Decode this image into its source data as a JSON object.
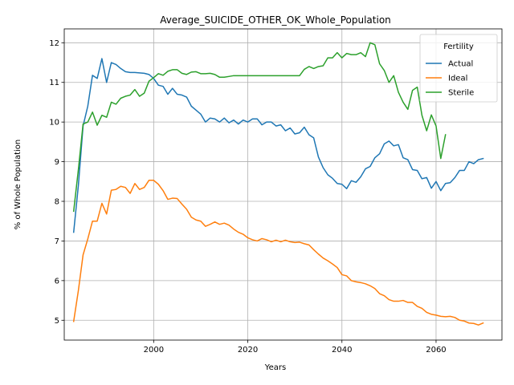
{
  "chart_data": {
    "type": "line",
    "title": "Average_SUICIDE_OTHER_OK_Whole_Population",
    "xlabel": "Years",
    "ylabel": "% of Whole Population",
    "xlim": [
      1981,
      2074
    ],
    "ylim": [
      4.5,
      12.35
    ],
    "xticks": [
      1980,
      2000,
      2020,
      2040,
      2060
    ],
    "yticks": [
      5,
      6,
      7,
      8,
      9,
      10,
      11,
      12
    ],
    "grid": true,
    "legend": {
      "title": "Fertility",
      "placement": "top-right"
    },
    "series": [
      {
        "name": "Actual",
        "color": "#1f77b4",
        "points": [
          [
            1983,
            7.22
          ],
          [
            1984,
            8.4
          ],
          [
            1985,
            9.9
          ],
          [
            1986,
            10.4
          ],
          [
            1987,
            11.18
          ],
          [
            1988,
            11.1
          ],
          [
            1989,
            11.6
          ],
          [
            1990,
            11.0
          ],
          [
            1991,
            11.5
          ],
          [
            1992,
            11.45
          ],
          [
            1993,
            11.35
          ],
          [
            1994,
            11.27
          ],
          [
            1995,
            11.25
          ],
          [
            1996,
            11.25
          ],
          [
            1997,
            11.24
          ],
          [
            1998,
            11.23
          ],
          [
            1999,
            11.2
          ],
          [
            2000,
            11.1
          ],
          [
            2001,
            10.93
          ],
          [
            2002,
            10.9
          ],
          [
            2003,
            10.7
          ],
          [
            2004,
            10.85
          ],
          [
            2005,
            10.7
          ],
          [
            2006,
            10.68
          ],
          [
            2007,
            10.63
          ],
          [
            2008,
            10.4
          ],
          [
            2009,
            10.3
          ],
          [
            2010,
            10.2
          ],
          [
            2011,
            10.0
          ],
          [
            2012,
            10.1
          ],
          [
            2013,
            10.08
          ],
          [
            2014,
            10.0
          ],
          [
            2015,
            10.1
          ],
          [
            2016,
            9.98
          ],
          [
            2017,
            10.05
          ],
          [
            2018,
            9.95
          ],
          [
            2019,
            10.05
          ],
          [
            2020,
            10.0
          ],
          [
            2021,
            10.08
          ],
          [
            2022,
            10.08
          ],
          [
            2023,
            9.93
          ],
          [
            2024,
            10.0
          ],
          [
            2025,
            10.0
          ],
          [
            2026,
            9.9
          ],
          [
            2027,
            9.93
          ],
          [
            2028,
            9.78
          ],
          [
            2029,
            9.85
          ],
          [
            2030,
            9.7
          ],
          [
            2031,
            9.73
          ],
          [
            2032,
            9.87
          ],
          [
            2033,
            9.68
          ],
          [
            2034,
            9.6
          ],
          [
            2035,
            9.12
          ],
          [
            2036,
            8.85
          ],
          [
            2037,
            8.67
          ],
          [
            2038,
            8.58
          ],
          [
            2039,
            8.45
          ],
          [
            2040,
            8.43
          ],
          [
            2041,
            8.32
          ],
          [
            2042,
            8.52
          ],
          [
            2043,
            8.48
          ],
          [
            2044,
            8.62
          ],
          [
            2045,
            8.82
          ],
          [
            2046,
            8.88
          ],
          [
            2047,
            9.1
          ],
          [
            2048,
            9.2
          ],
          [
            2049,
            9.45
          ],
          [
            2050,
            9.52
          ],
          [
            2051,
            9.4
          ],
          [
            2052,
            9.43
          ],
          [
            2053,
            9.1
          ],
          [
            2054,
            9.05
          ],
          [
            2055,
            8.8
          ],
          [
            2056,
            8.78
          ],
          [
            2057,
            8.57
          ],
          [
            2058,
            8.6
          ],
          [
            2059,
            8.33
          ],
          [
            2060,
            8.5
          ],
          [
            2061,
            8.27
          ],
          [
            2062,
            8.45
          ],
          [
            2063,
            8.47
          ],
          [
            2064,
            8.6
          ],
          [
            2065,
            8.78
          ],
          [
            2066,
            8.78
          ],
          [
            2067,
            9.0
          ],
          [
            2068,
            8.95
          ],
          [
            2069,
            9.05
          ],
          [
            2070,
            9.08
          ]
        ]
      },
      {
        "name": "Ideal",
        "color": "#ff7f0e",
        "points": [
          [
            1983,
            4.97
          ],
          [
            1984,
            5.75
          ],
          [
            1985,
            6.65
          ],
          [
            1986,
            7.05
          ],
          [
            1987,
            7.5
          ],
          [
            1988,
            7.5
          ],
          [
            1989,
            7.95
          ],
          [
            1990,
            7.68
          ],
          [
            1991,
            8.28
          ],
          [
            1992,
            8.3
          ],
          [
            1993,
            8.38
          ],
          [
            1994,
            8.35
          ],
          [
            1995,
            8.2
          ],
          [
            1996,
            8.45
          ],
          [
            1997,
            8.3
          ],
          [
            1998,
            8.35
          ],
          [
            1999,
            8.53
          ],
          [
            2000,
            8.53
          ],
          [
            2001,
            8.43
          ],
          [
            2002,
            8.27
          ],
          [
            2003,
            8.05
          ],
          [
            2004,
            8.08
          ],
          [
            2005,
            8.07
          ],
          [
            2006,
            7.93
          ],
          [
            2007,
            7.8
          ],
          [
            2008,
            7.6
          ],
          [
            2009,
            7.53
          ],
          [
            2010,
            7.5
          ],
          [
            2011,
            7.37
          ],
          [
            2012,
            7.42
          ],
          [
            2013,
            7.48
          ],
          [
            2014,
            7.42
          ],
          [
            2015,
            7.45
          ],
          [
            2016,
            7.4
          ],
          [
            2017,
            7.3
          ],
          [
            2018,
            7.22
          ],
          [
            2019,
            7.17
          ],
          [
            2020,
            7.08
          ],
          [
            2021,
            7.03
          ],
          [
            2022,
            7.0
          ],
          [
            2023,
            7.06
          ],
          [
            2024,
            7.03
          ],
          [
            2025,
            6.98
          ],
          [
            2026,
            7.02
          ],
          [
            2027,
            6.98
          ],
          [
            2028,
            7.02
          ],
          [
            2029,
            6.98
          ],
          [
            2030,
            6.96
          ],
          [
            2031,
            6.97
          ],
          [
            2032,
            6.93
          ],
          [
            2033,
            6.9
          ],
          [
            2034,
            6.78
          ],
          [
            2035,
            6.67
          ],
          [
            2036,
            6.57
          ],
          [
            2037,
            6.5
          ],
          [
            2038,
            6.42
          ],
          [
            2039,
            6.33
          ],
          [
            2040,
            6.15
          ],
          [
            2041,
            6.12
          ],
          [
            2042,
            6.0
          ],
          [
            2043,
            5.97
          ],
          [
            2044,
            5.95
          ],
          [
            2045,
            5.92
          ],
          [
            2046,
            5.87
          ],
          [
            2047,
            5.8
          ],
          [
            2048,
            5.67
          ],
          [
            2049,
            5.62
          ],
          [
            2050,
            5.52
          ],
          [
            2051,
            5.48
          ],
          [
            2052,
            5.48
          ],
          [
            2053,
            5.5
          ],
          [
            2054,
            5.45
          ],
          [
            2055,
            5.45
          ],
          [
            2056,
            5.35
          ],
          [
            2057,
            5.3
          ],
          [
            2058,
            5.2
          ],
          [
            2059,
            5.15
          ],
          [
            2060,
            5.13
          ],
          [
            2061,
            5.1
          ],
          [
            2062,
            5.09
          ],
          [
            2063,
            5.1
          ],
          [
            2064,
            5.07
          ],
          [
            2065,
            5.0
          ],
          [
            2066,
            4.98
          ],
          [
            2067,
            4.93
          ],
          [
            2068,
            4.92
          ],
          [
            2069,
            4.88
          ],
          [
            2070,
            4.93
          ]
        ]
      },
      {
        "name": "Sterile",
        "color": "#2ca02c",
        "points": [
          [
            1983,
            7.75
          ],
          [
            1984,
            8.8
          ],
          [
            1985,
            9.95
          ],
          [
            1986,
            10.0
          ],
          [
            1987,
            10.25
          ],
          [
            1988,
            9.92
          ],
          [
            1989,
            10.17
          ],
          [
            1990,
            10.12
          ],
          [
            1991,
            10.5
          ],
          [
            1992,
            10.45
          ],
          [
            1993,
            10.6
          ],
          [
            1994,
            10.65
          ],
          [
            1995,
            10.68
          ],
          [
            1996,
            10.82
          ],
          [
            1997,
            10.65
          ],
          [
            1998,
            10.73
          ],
          [
            1999,
            11.03
          ],
          [
            2000,
            11.12
          ],
          [
            2001,
            11.22
          ],
          [
            2002,
            11.18
          ],
          [
            2003,
            11.28
          ],
          [
            2004,
            11.32
          ],
          [
            2005,
            11.32
          ],
          [
            2006,
            11.23
          ],
          [
            2007,
            11.2
          ],
          [
            2008,
            11.26
          ],
          [
            2009,
            11.27
          ],
          [
            2010,
            11.22
          ],
          [
            2011,
            11.22
          ],
          [
            2012,
            11.23
          ],
          [
            2013,
            11.2
          ],
          [
            2014,
            11.13
          ],
          [
            2015,
            11.13
          ],
          [
            2016,
            11.15
          ],
          [
            2017,
            11.17
          ],
          [
            2018,
            11.17
          ],
          [
            2019,
            11.17
          ],
          [
            2020,
            11.17
          ],
          [
            2021,
            11.17
          ],
          [
            2022,
            11.17
          ],
          [
            2023,
            11.17
          ],
          [
            2024,
            11.17
          ],
          [
            2025,
            11.17
          ],
          [
            2026,
            11.17
          ],
          [
            2027,
            11.17
          ],
          [
            2028,
            11.17
          ],
          [
            2029,
            11.17
          ],
          [
            2030,
            11.17
          ],
          [
            2031,
            11.17
          ],
          [
            2032,
            11.33
          ],
          [
            2033,
            11.4
          ],
          [
            2034,
            11.35
          ],
          [
            2035,
            11.4
          ],
          [
            2036,
            11.42
          ],
          [
            2037,
            11.62
          ],
          [
            2038,
            11.62
          ],
          [
            2039,
            11.75
          ],
          [
            2040,
            11.62
          ],
          [
            2041,
            11.73
          ],
          [
            2042,
            11.7
          ],
          [
            2043,
            11.7
          ],
          [
            2044,
            11.75
          ],
          [
            2045,
            11.65
          ],
          [
            2046,
            12.0
          ],
          [
            2047,
            11.95
          ],
          [
            2048,
            11.47
          ],
          [
            2049,
            11.3
          ],
          [
            2050,
            11.0
          ],
          [
            2051,
            11.17
          ],
          [
            2052,
            10.75
          ],
          [
            2053,
            10.5
          ],
          [
            2054,
            10.32
          ],
          [
            2055,
            10.8
          ],
          [
            2056,
            10.88
          ],
          [
            2057,
            10.17
          ],
          [
            2058,
            9.78
          ],
          [
            2059,
            10.18
          ],
          [
            2060,
            9.9
          ],
          [
            2061,
            9.08
          ],
          [
            2062,
            9.68
          ]
        ]
      }
    ]
  }
}
